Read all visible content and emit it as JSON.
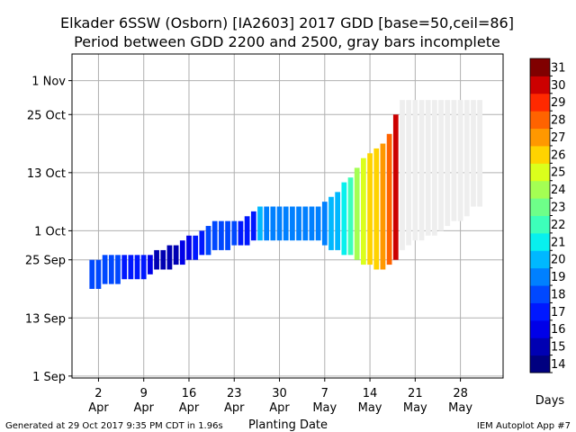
{
  "chart_data": {
    "type": "bar",
    "title_line1": "Elkader 6SSW (Osborn) [IA2603] 2017 GDD [base=50,ceil=86]",
    "title_line2": "Period between GDD 2200 and 2500, gray bars incomplete",
    "xlabel": "Planting Date",
    "x_ticks": [
      {
        "day": 2,
        "label1": "2",
        "label2": "Apr"
      },
      {
        "day": 9,
        "label1": "9",
        "label2": "Apr"
      },
      {
        "day": 16,
        "label1": "16",
        "label2": "Apr"
      },
      {
        "day": 23,
        "label1": "23",
        "label2": "Apr"
      },
      {
        "day": 30,
        "label1": "30",
        "label2": "Apr"
      },
      {
        "day": 37,
        "label1": "7",
        "label2": "May"
      },
      {
        "day": 44,
        "label1": "14",
        "label2": "May"
      },
      {
        "day": 51,
        "label1": "21",
        "label2": "May"
      },
      {
        "day": 58,
        "label1": "28",
        "label2": "May"
      }
    ],
    "xlim": [
      -2.1,
      64.6
    ],
    "y_ticks": [
      {
        "doy": 244,
        "label": "1 Sep"
      },
      {
        "doy": 256,
        "label": "13 Sep"
      },
      {
        "doy": 268,
        "label": "25 Sep"
      },
      {
        "doy": 274,
        "label": "1 Oct"
      },
      {
        "doy": 286,
        "label": "13 Oct"
      },
      {
        "doy": 298,
        "label": "25 Oct"
      },
      {
        "doy": 305,
        "label": "1 Nov"
      }
    ],
    "ylim": [
      243.6,
      310.5
    ],
    "grid": true,
    "bars": [
      {
        "day": 1,
        "start": "2017-09-19",
        "end": "2017-09-25",
        "days": 18
      },
      {
        "day": 2,
        "start": "2017-09-19",
        "end": "2017-09-25",
        "days": 18
      },
      {
        "day": 3,
        "start": "2017-09-20",
        "end": "2017-09-26",
        "days": 18
      },
      {
        "day": 4,
        "start": "2017-09-20",
        "end": "2017-09-26",
        "days": 18
      },
      {
        "day": 5,
        "start": "2017-09-20",
        "end": "2017-09-26",
        "days": 18
      },
      {
        "day": 6,
        "start": "2017-09-21",
        "end": "2017-09-26",
        "days": 17
      },
      {
        "day": 7,
        "start": "2017-09-21",
        "end": "2017-09-26",
        "days": 17
      },
      {
        "day": 8,
        "start": "2017-09-21",
        "end": "2017-09-26",
        "days": 17
      },
      {
        "day": 9,
        "start": "2017-09-21",
        "end": "2017-09-26",
        "days": 17
      },
      {
        "day": 10,
        "start": "2017-09-22",
        "end": "2017-09-26",
        "days": 16
      },
      {
        "day": 11,
        "start": "2017-09-23",
        "end": "2017-09-27",
        "days": 15
      },
      {
        "day": 12,
        "start": "2017-09-23",
        "end": "2017-09-27",
        "days": 15
      },
      {
        "day": 13,
        "start": "2017-09-23",
        "end": "2017-09-28",
        "days": 15
      },
      {
        "day": 14,
        "start": "2017-09-24",
        "end": "2017-09-28",
        "days": 15
      },
      {
        "day": 15,
        "start": "2017-09-24",
        "end": "2017-09-29",
        "days": 16
      },
      {
        "day": 16,
        "start": "2017-09-25",
        "end": "2017-09-30",
        "days": 16
      },
      {
        "day": 17,
        "start": "2017-09-25",
        "end": "2017-09-30",
        "days": 17
      },
      {
        "day": 18,
        "start": "2017-09-26",
        "end": "2017-10-01",
        "days": 17
      },
      {
        "day": 19,
        "start": "2017-09-26",
        "end": "2017-10-02",
        "days": 18
      },
      {
        "day": 20,
        "start": "2017-09-27",
        "end": "2017-10-03",
        "days": 18
      },
      {
        "day": 21,
        "start": "2017-09-27",
        "end": "2017-10-03",
        "days": 18
      },
      {
        "day": 22,
        "start": "2017-09-27",
        "end": "2017-10-03",
        "days": 18
      },
      {
        "day": 23,
        "start": "2017-09-28",
        "end": "2017-10-03",
        "days": 18
      },
      {
        "day": 24,
        "start": "2017-09-28",
        "end": "2017-10-03",
        "days": 17
      },
      {
        "day": 25,
        "start": "2017-09-28",
        "end": "2017-10-04",
        "days": 17
      },
      {
        "day": 26,
        "start": "2017-09-29",
        "end": "2017-10-05",
        "days": 17
      },
      {
        "day": 27,
        "start": "2017-09-29",
        "end": "2017-10-06",
        "days": 20
      },
      {
        "day": 28,
        "start": "2017-09-29",
        "end": "2017-10-06",
        "days": 19
      },
      {
        "day": 29,
        "start": "2017-09-29",
        "end": "2017-10-06",
        "days": 19
      },
      {
        "day": 30,
        "start": "2017-09-29",
        "end": "2017-10-06",
        "days": 19
      },
      {
        "day": 31,
        "start": "2017-09-29",
        "end": "2017-10-06",
        "days": 19
      },
      {
        "day": 32,
        "start": "2017-09-29",
        "end": "2017-10-06",
        "days": 19
      },
      {
        "day": 33,
        "start": "2017-09-29",
        "end": "2017-10-06",
        "days": 19
      },
      {
        "day": 34,
        "start": "2017-09-29",
        "end": "2017-10-06",
        "days": 19
      },
      {
        "day": 35,
        "start": "2017-09-29",
        "end": "2017-10-06",
        "days": 19
      },
      {
        "day": 36,
        "start": "2017-09-29",
        "end": "2017-10-06",
        "days": 19
      },
      {
        "day": 37,
        "start": "2017-09-28",
        "end": "2017-10-07",
        "days": 19
      },
      {
        "day": 38,
        "start": "2017-09-27",
        "end": "2017-10-08",
        "days": 20
      },
      {
        "day": 39,
        "start": "2017-09-27",
        "end": "2017-10-09",
        "days": 20
      },
      {
        "day": 40,
        "start": "2017-09-26",
        "end": "2017-10-11",
        "days": 21
      },
      {
        "day": 41,
        "start": "2017-09-26",
        "end": "2017-10-12",
        "days": 22
      },
      {
        "day": 42,
        "start": "2017-09-25",
        "end": "2017-10-14",
        "days": 24
      },
      {
        "day": 43,
        "start": "2017-09-24",
        "end": "2017-10-16",
        "days": 25
      },
      {
        "day": 44,
        "start": "2017-09-24",
        "end": "2017-10-17",
        "days": 26
      },
      {
        "day": 45,
        "start": "2017-09-23",
        "end": "2017-10-18",
        "days": 26
      },
      {
        "day": 46,
        "start": "2017-09-23",
        "end": "2017-10-19",
        "days": 27
      },
      {
        "day": 47,
        "start": "2017-09-24",
        "end": "2017-10-21",
        "days": 28
      },
      {
        "day": 48,
        "start": "2017-09-25",
        "end": "2017-10-25",
        "days": 30
      },
      {
        "day": 49,
        "start": "2017-09-27",
        "end": "2017-10-28",
        "incomplete": true
      },
      {
        "day": 50,
        "start": "2017-09-28",
        "end": "2017-10-28",
        "incomplete": true
      },
      {
        "day": 51,
        "start": "2017-09-29",
        "end": "2017-10-28",
        "incomplete": true
      },
      {
        "day": 52,
        "start": "2017-09-29",
        "end": "2017-10-28",
        "incomplete": true
      },
      {
        "day": 53,
        "start": "2017-09-30",
        "end": "2017-10-28",
        "incomplete": true
      },
      {
        "day": 54,
        "start": "2017-09-30",
        "end": "2017-10-28",
        "incomplete": true
      },
      {
        "day": 55,
        "start": "2017-10-01",
        "end": "2017-10-28",
        "incomplete": true
      },
      {
        "day": 56,
        "start": "2017-10-02",
        "end": "2017-10-28",
        "incomplete": true
      },
      {
        "day": 57,
        "start": "2017-10-03",
        "end": "2017-10-28",
        "incomplete": true
      },
      {
        "day": 58,
        "start": "2017-10-03",
        "end": "2017-10-28",
        "incomplete": true
      },
      {
        "day": 59,
        "start": "2017-10-04",
        "end": "2017-10-28",
        "incomplete": true
      },
      {
        "day": 60,
        "start": "2017-10-06",
        "end": "2017-10-28",
        "incomplete": true
      },
      {
        "day": 61,
        "start": "2017-10-06",
        "end": "2017-10-28",
        "incomplete": true
      }
    ],
    "colorbar": {
      "label": "Days",
      "levels": [
        14,
        15,
        16,
        17,
        18,
        19,
        20,
        21,
        22,
        23,
        24,
        25,
        26,
        27,
        28,
        29,
        30,
        31
      ],
      "colors": [
        "#000080",
        "#0000b2",
        "#0000e8",
        "#0018ff",
        "#0048ff",
        "#0080ff",
        "#00b8ff",
        "#08f0ee",
        "#3dffba",
        "#6eff89",
        "#a4ff53",
        "#dbff1c",
        "#ffd300",
        "#ff9800",
        "#ff6300",
        "#ff2900",
        "#cc0000",
        "#800000"
      ],
      "incomplete_color": "#eeeeee"
    }
  },
  "footer": {
    "generated": "Generated at 29 Oct 2017 9:35 PM CDT in 1.96s",
    "app": "IEM Autoplot App #7"
  }
}
